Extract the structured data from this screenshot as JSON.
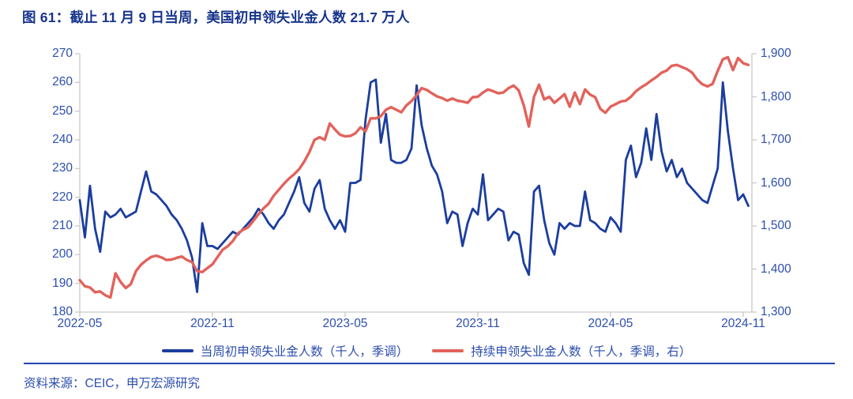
{
  "title": "图 61：截止 11 月 9 日当周，美国初申领失业金人数 21.7 万人",
  "source": "资料来源：CEIC，申万宏源研究",
  "colors": {
    "title_blue": "#17348c",
    "label_blue": "#2d4fae",
    "line_blue": "#1b3d9e",
    "line_red": "#e2625c",
    "separator_blue": "#2244aa",
    "axis_gray": "#c9c9c9"
  },
  "chart_data": {
    "type": "line",
    "title": "截止 11 月 9 日当周，美国初申领失业金人数 21.7 万人",
    "x_tick_labels": [
      "2022-05",
      "2022-11",
      "2023-05",
      "2023-11",
      "2024-05",
      "2024-11"
    ],
    "x_tick_weeks": [
      0,
      26,
      52,
      78,
      104,
      130
    ],
    "x_total_weeks": 130,
    "grid": "off",
    "legend_position": "bottom",
    "y_left": {
      "min": 180,
      "max": 270,
      "ticks": [
        180,
        190,
        200,
        210,
        220,
        230,
        240,
        250,
        260,
        270
      ]
    },
    "y_right": {
      "min": 1300,
      "max": 1900,
      "tick_values": [
        1300,
        1400,
        1500,
        1600,
        1700,
        1800,
        1900
      ],
      "tick_labels": [
        "1,300",
        "1,400",
        "1,500",
        "1,600",
        "1,700",
        "1,800",
        "1,900"
      ]
    },
    "series": [
      {
        "name": "当周初申领失业金人数（千人，季调）",
        "axis": "left",
        "color": "#1b3d9e",
        "stroke_width": 2.8,
        "values": [
          219,
          206,
          224,
          209,
          201,
          215,
          213,
          214,
          216,
          213,
          214,
          215,
          222,
          229,
          222,
          221,
          219,
          217,
          214,
          212,
          209,
          205,
          199,
          187,
          211,
          203,
          203,
          202,
          204,
          206,
          208,
          207,
          209,
          211,
          213,
          216,
          214,
          211,
          209,
          212,
          214,
          218,
          222,
          227,
          218,
          215,
          223,
          226,
          216,
          212,
          209,
          212,
          208,
          225,
          225,
          226,
          247,
          260,
          261,
          239,
          249,
          233,
          232,
          232,
          233,
          237,
          259,
          245,
          237,
          231,
          228,
          222,
          211,
          215,
          214,
          203,
          211,
          216,
          214,
          228,
          212,
          214,
          216,
          215,
          205,
          208,
          207,
          197,
          193,
          222,
          224,
          212,
          204,
          200,
          211,
          209,
          211,
          210,
          210,
          222,
          212,
          211,
          209,
          208,
          213,
          211,
          208,
          233,
          238,
          227,
          232,
          244,
          233,
          249,
          236,
          229,
          233,
          227,
          230,
          225,
          223,
          221,
          219,
          218,
          224,
          230,
          260,
          243,
          230,
          219,
          221,
          217
        ]
      },
      {
        "name": "持续申领失业金人数（千人，季调，右）",
        "axis": "right",
        "color": "#e2625c",
        "stroke_width": 3.4,
        "values": [
          1374,
          1360,
          1357,
          1346,
          1348,
          1339,
          1334,
          1390,
          1370,
          1356,
          1365,
          1395,
          1410,
          1420,
          1428,
          1431,
          1427,
          1421,
          1422,
          1426,
          1429,
          1421,
          1416,
          1395,
          1393,
          1402,
          1411,
          1428,
          1445,
          1453,
          1465,
          1483,
          1491,
          1497,
          1512,
          1527,
          1541,
          1552,
          1570,
          1584,
          1598,
          1610,
          1620,
          1632,
          1650,
          1672,
          1700,
          1706,
          1700,
          1738,
          1724,
          1712,
          1708,
          1709,
          1715,
          1729,
          1720,
          1750,
          1750,
          1755,
          1770,
          1776,
          1770,
          1764,
          1780,
          1790,
          1804,
          1820,
          1816,
          1808,
          1801,
          1797,
          1791,
          1796,
          1791,
          1789,
          1786,
          1799,
          1800,
          1810,
          1817,
          1813,
          1808,
          1810,
          1820,
          1826,
          1815,
          1780,
          1731,
          1800,
          1828,
          1794,
          1800,
          1786,
          1796,
          1806,
          1777,
          1810,
          1783,
          1817,
          1805,
          1799,
          1772,
          1763,
          1777,
          1783,
          1789,
          1791,
          1800,
          1813,
          1822,
          1829,
          1838,
          1846,
          1856,
          1861,
          1872,
          1874,
          1869,
          1864,
          1856,
          1840,
          1829,
          1824,
          1830,
          1860,
          1887,
          1892,
          1862,
          1890,
          1878,
          1874
        ]
      }
    ]
  }
}
